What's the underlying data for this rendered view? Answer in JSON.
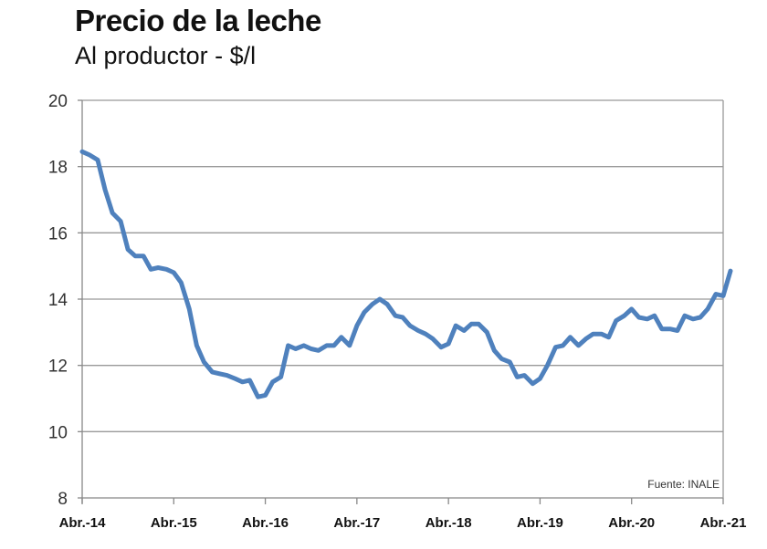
{
  "chart_data": {
    "type": "line",
    "title": "Precio de la leche",
    "subtitle": "Al productor - $/l",
    "source": "Fuente: INALE",
    "ylim": [
      8,
      20
    ],
    "yticks": [
      8,
      10,
      12,
      14,
      16,
      18,
      20
    ],
    "xlim": [
      2014.25,
      2021.25
    ],
    "xticks": [
      {
        "label": "Abr.-14",
        "value": 2014.25
      },
      {
        "label": "Abr.-15",
        "value": 2015.25
      },
      {
        "label": "Abr.-16",
        "value": 2016.25
      },
      {
        "label": "Abr.-17",
        "value": 2017.25
      },
      {
        "label": "Abr.-18",
        "value": 2018.25
      },
      {
        "label": "Abr.-19",
        "value": 2019.25
      },
      {
        "label": "Abr.-20",
        "value": 2020.25
      },
      {
        "label": "Abr.-21",
        "value": 2021.25
      }
    ],
    "grid": true,
    "color": "#4f81bd",
    "series": [
      {
        "points": [
          [
            2014.25,
            18.45
          ],
          [
            2014.33,
            18.35
          ],
          [
            2014.42,
            18.2
          ],
          [
            2014.5,
            17.3
          ],
          [
            2014.58,
            16.6
          ],
          [
            2014.67,
            16.35
          ],
          [
            2014.75,
            15.5
          ],
          [
            2014.83,
            15.3
          ],
          [
            2014.92,
            15.3
          ],
          [
            2015.0,
            14.9
          ],
          [
            2015.08,
            14.95
          ],
          [
            2015.17,
            14.9
          ],
          [
            2015.25,
            14.8
          ],
          [
            2015.33,
            14.5
          ],
          [
            2015.42,
            13.7
          ],
          [
            2015.5,
            12.6
          ],
          [
            2015.58,
            12.1
          ],
          [
            2015.67,
            11.8
          ],
          [
            2015.75,
            11.75
          ],
          [
            2015.83,
            11.7
          ],
          [
            2015.92,
            11.6
          ],
          [
            2016.0,
            11.5
          ],
          [
            2016.08,
            11.55
          ],
          [
            2016.17,
            11.05
          ],
          [
            2016.25,
            11.1
          ],
          [
            2016.33,
            11.5
          ],
          [
            2016.42,
            11.65
          ],
          [
            2016.5,
            12.6
          ],
          [
            2016.58,
            12.5
          ],
          [
            2016.67,
            12.6
          ],
          [
            2016.75,
            12.5
          ],
          [
            2016.83,
            12.45
          ],
          [
            2016.92,
            12.6
          ],
          [
            2017.0,
            12.6
          ],
          [
            2017.08,
            12.85
          ],
          [
            2017.17,
            12.6
          ],
          [
            2017.25,
            13.2
          ],
          [
            2017.33,
            13.6
          ],
          [
            2017.42,
            13.85
          ],
          [
            2017.5,
            14.0
          ],
          [
            2017.58,
            13.85
          ],
          [
            2017.67,
            13.5
          ],
          [
            2017.75,
            13.45
          ],
          [
            2017.83,
            13.2
          ],
          [
            2017.92,
            13.05
          ],
          [
            2018.0,
            12.95
          ],
          [
            2018.08,
            12.8
          ],
          [
            2018.17,
            12.55
          ],
          [
            2018.25,
            12.65
          ],
          [
            2018.33,
            13.2
          ],
          [
            2018.42,
            13.05
          ],
          [
            2018.5,
            13.25
          ],
          [
            2018.58,
            13.25
          ],
          [
            2018.67,
            13.0
          ],
          [
            2018.75,
            12.45
          ],
          [
            2018.83,
            12.2
          ],
          [
            2018.92,
            12.1
          ],
          [
            2019.0,
            11.65
          ],
          [
            2019.08,
            11.7
          ],
          [
            2019.17,
            11.45
          ],
          [
            2019.25,
            11.6
          ],
          [
            2019.33,
            12.0
          ],
          [
            2019.42,
            12.55
          ],
          [
            2019.5,
            12.6
          ],
          [
            2019.58,
            12.85
          ],
          [
            2019.67,
            12.6
          ],
          [
            2019.75,
            12.8
          ],
          [
            2019.83,
            12.95
          ],
          [
            2019.92,
            12.95
          ],
          [
            2020.0,
            12.85
          ],
          [
            2020.08,
            13.35
          ],
          [
            2020.17,
            13.5
          ],
          [
            2020.25,
            13.7
          ],
          [
            2020.33,
            13.45
          ],
          [
            2020.42,
            13.4
          ],
          [
            2020.5,
            13.5
          ],
          [
            2020.58,
            13.1
          ],
          [
            2020.67,
            13.1
          ],
          [
            2020.75,
            13.05
          ],
          [
            2020.83,
            13.5
          ],
          [
            2020.92,
            13.4
          ],
          [
            2021.0,
            13.45
          ],
          [
            2021.08,
            13.7
          ],
          [
            2021.17,
            14.15
          ],
          [
            2021.25,
            14.1
          ],
          [
            2021.33,
            14.85
          ]
        ]
      }
    ]
  }
}
